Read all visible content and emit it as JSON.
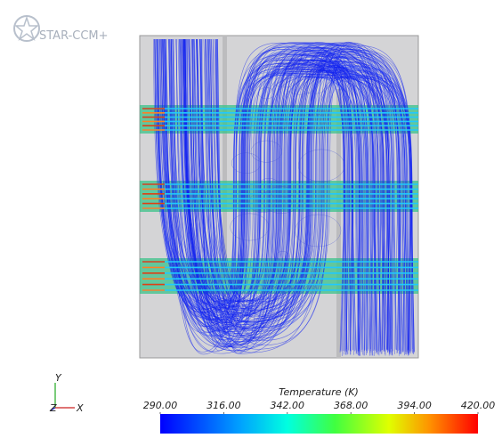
{
  "logo": {
    "text": "STAR-CCM+"
  },
  "triad": {
    "y": "Y",
    "z": "Z",
    "x": "X"
  },
  "colorbar": {
    "title": "Temperature (K)",
    "range": [
      290,
      420
    ],
    "ticks": [
      {
        "value": 290,
        "label": "290.00"
      },
      {
        "value": 316,
        "label": "316.00"
      },
      {
        "value": 342,
        "label": "342.00"
      },
      {
        "value": 368,
        "label": "368.00"
      },
      {
        "value": 394,
        "label": "394.00"
      },
      {
        "value": 420,
        "label": "420.00"
      }
    ]
  }
}
